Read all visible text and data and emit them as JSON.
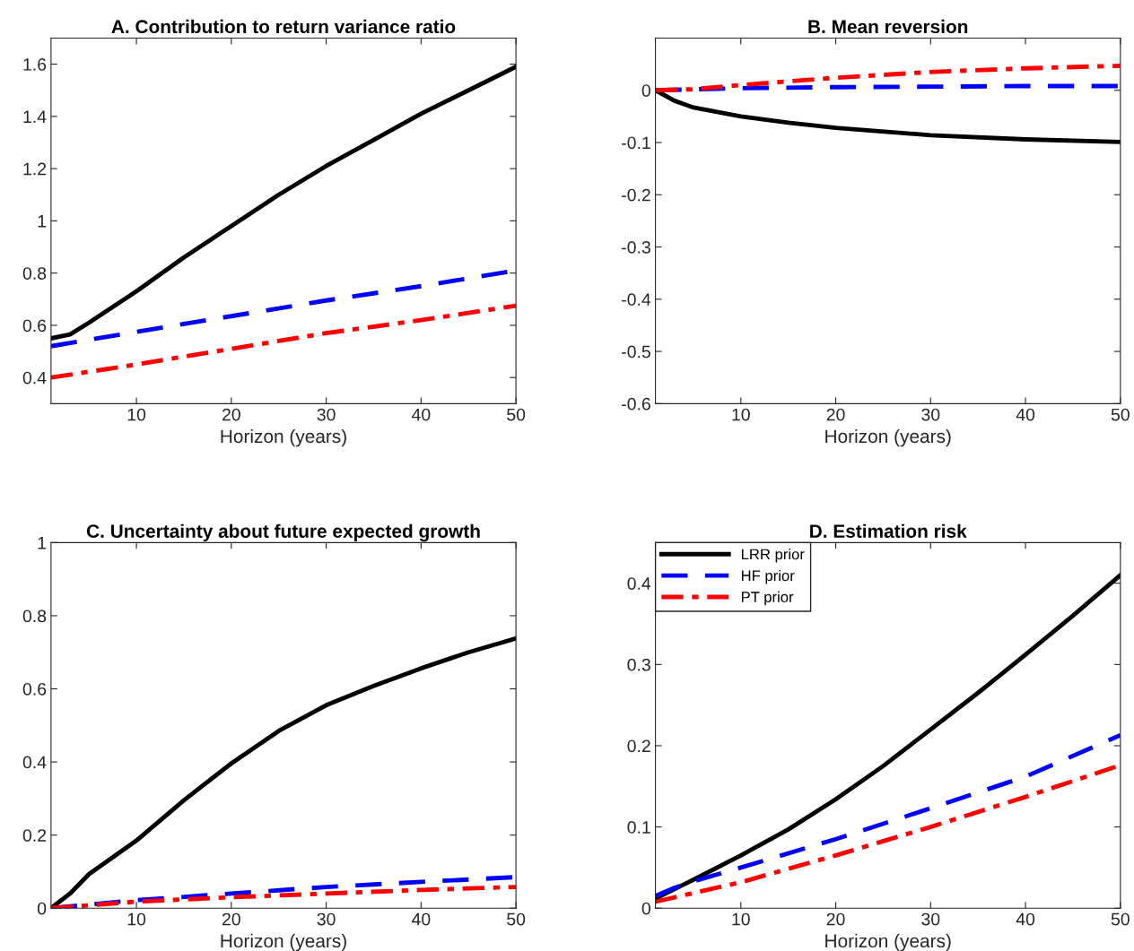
{
  "chart_data": [
    {
      "type": "line",
      "title": "A. Contribution to return variance ratio",
      "xlabel": "Horizon (years)",
      "xlim": [
        1,
        50
      ],
      "xticks": [
        10,
        20,
        30,
        40,
        50
      ],
      "ylim": [
        0.3,
        1.7
      ],
      "yticks": [
        0.4,
        0.6,
        0.8,
        1,
        1.2,
        1.4,
        1.6
      ],
      "grid": false,
      "legend": false,
      "series": [
        {
          "color": "#000000",
          "line_style": "solid",
          "x": [
            1,
            3,
            5,
            10,
            15,
            20,
            25,
            30,
            35,
            40,
            45,
            50
          ],
          "values": [
            0.55,
            0.565,
            0.61,
            0.73,
            0.86,
            0.98,
            1.1,
            1.21,
            1.31,
            1.41,
            1.5,
            1.59
          ]
        },
        {
          "color": "#0000ff",
          "line_style": "dashed",
          "x": [
            1,
            10,
            20,
            30,
            40,
            50
          ],
          "values": [
            0.52,
            0.575,
            0.635,
            0.695,
            0.75,
            0.81
          ]
        },
        {
          "color": "#ff0000",
          "line_style": "dashdot",
          "x": [
            1,
            10,
            20,
            30,
            40,
            50
          ],
          "values": [
            0.4,
            0.45,
            0.51,
            0.57,
            0.62,
            0.675
          ]
        }
      ]
    },
    {
      "type": "line",
      "title": "B. Mean reversion",
      "xlabel": "Horizon (years)",
      "xlim": [
        1,
        50
      ],
      "xticks": [
        10,
        20,
        30,
        40,
        50
      ],
      "ylim": [
        -0.6,
        0.1
      ],
      "yticks": [
        -0.6,
        -0.5,
        -0.4,
        -0.3,
        -0.2,
        -0.1,
        0
      ],
      "grid": false,
      "legend": false,
      "series": [
        {
          "color": "#000000",
          "line_style": "solid",
          "x": [
            1,
            3,
            5,
            10,
            15,
            20,
            30,
            40,
            50
          ],
          "values": [
            0,
            -0.02,
            -0.033,
            -0.05,
            -0.062,
            -0.072,
            -0.086,
            -0.094,
            -0.099
          ]
        },
        {
          "color": "#0000ff",
          "line_style": "dashed",
          "x": [
            1,
            10,
            20,
            30,
            40,
            50
          ],
          "values": [
            0,
            0.004,
            0.006,
            0.007,
            0.008,
            0.008
          ]
        },
        {
          "color": "#ff0000",
          "line_style": "dashdot",
          "x": [
            1,
            5,
            10,
            20,
            30,
            40,
            50
          ],
          "values": [
            0,
            0.002,
            0.01,
            0.024,
            0.035,
            0.042,
            0.047
          ]
        }
      ]
    },
    {
      "type": "line",
      "title": "C. Uncertainty about future expected growth",
      "xlabel": "Horizon (years)",
      "xlim": [
        1,
        50
      ],
      "xticks": [
        10,
        20,
        30,
        40,
        50
      ],
      "ylim": [
        0,
        1
      ],
      "yticks": [
        0,
        0.2,
        0.4,
        0.6,
        0.8,
        1
      ],
      "grid": false,
      "legend": false,
      "series": [
        {
          "color": "#000000",
          "line_style": "solid",
          "x": [
            1,
            3,
            5,
            10,
            15,
            20,
            25,
            30,
            35,
            40,
            45,
            50
          ],
          "values": [
            0,
            0.04,
            0.093,
            0.185,
            0.295,
            0.396,
            0.485,
            0.555,
            0.608,
            0.656,
            0.7,
            0.738
          ]
        },
        {
          "color": "#0000ff",
          "line_style": "dashed",
          "x": [
            1,
            10,
            20,
            30,
            40,
            50
          ],
          "values": [
            0,
            0.022,
            0.04,
            0.058,
            0.072,
            0.085
          ]
        },
        {
          "color": "#ff0000",
          "line_style": "dashdot",
          "x": [
            1,
            10,
            20,
            30,
            40,
            50
          ],
          "values": [
            0,
            0.018,
            0.03,
            0.04,
            0.05,
            0.058
          ]
        }
      ]
    },
    {
      "type": "line",
      "title": "D. Estimation risk",
      "xlabel": "Horizon (years)",
      "xlim": [
        1,
        50
      ],
      "xticks": [
        10,
        20,
        30,
        40,
        50
      ],
      "ylim": [
        0,
        0.45
      ],
      "yticks": [
        0,
        0.1,
        0.2,
        0.3,
        0.4
      ],
      "grid": false,
      "legend": "top left",
      "series": [
        {
          "name": "LRR prior",
          "color": "#000000",
          "line_style": "solid",
          "x": [
            1,
            5,
            10,
            15,
            20,
            25,
            30,
            35,
            40,
            45,
            50
          ],
          "values": [
            0.012,
            0.035,
            0.065,
            0.097,
            0.134,
            0.175,
            0.22,
            0.265,
            0.312,
            0.36,
            0.41
          ]
        },
        {
          "name": "HF prior",
          "color": "#0000ff",
          "line_style": "dashed",
          "x": [
            1,
            3,
            5,
            10,
            20,
            30,
            40,
            50
          ],
          "values": [
            0.015,
            0.025,
            0.033,
            0.05,
            0.085,
            0.123,
            0.162,
            0.213
          ]
        },
        {
          "name": "PT prior",
          "color": "#ff0000",
          "line_style": "dashdot",
          "x": [
            1,
            10,
            20,
            30,
            40,
            50
          ],
          "values": [
            0.008,
            0.032,
            0.065,
            0.1,
            0.137,
            0.176
          ]
        }
      ]
    }
  ]
}
